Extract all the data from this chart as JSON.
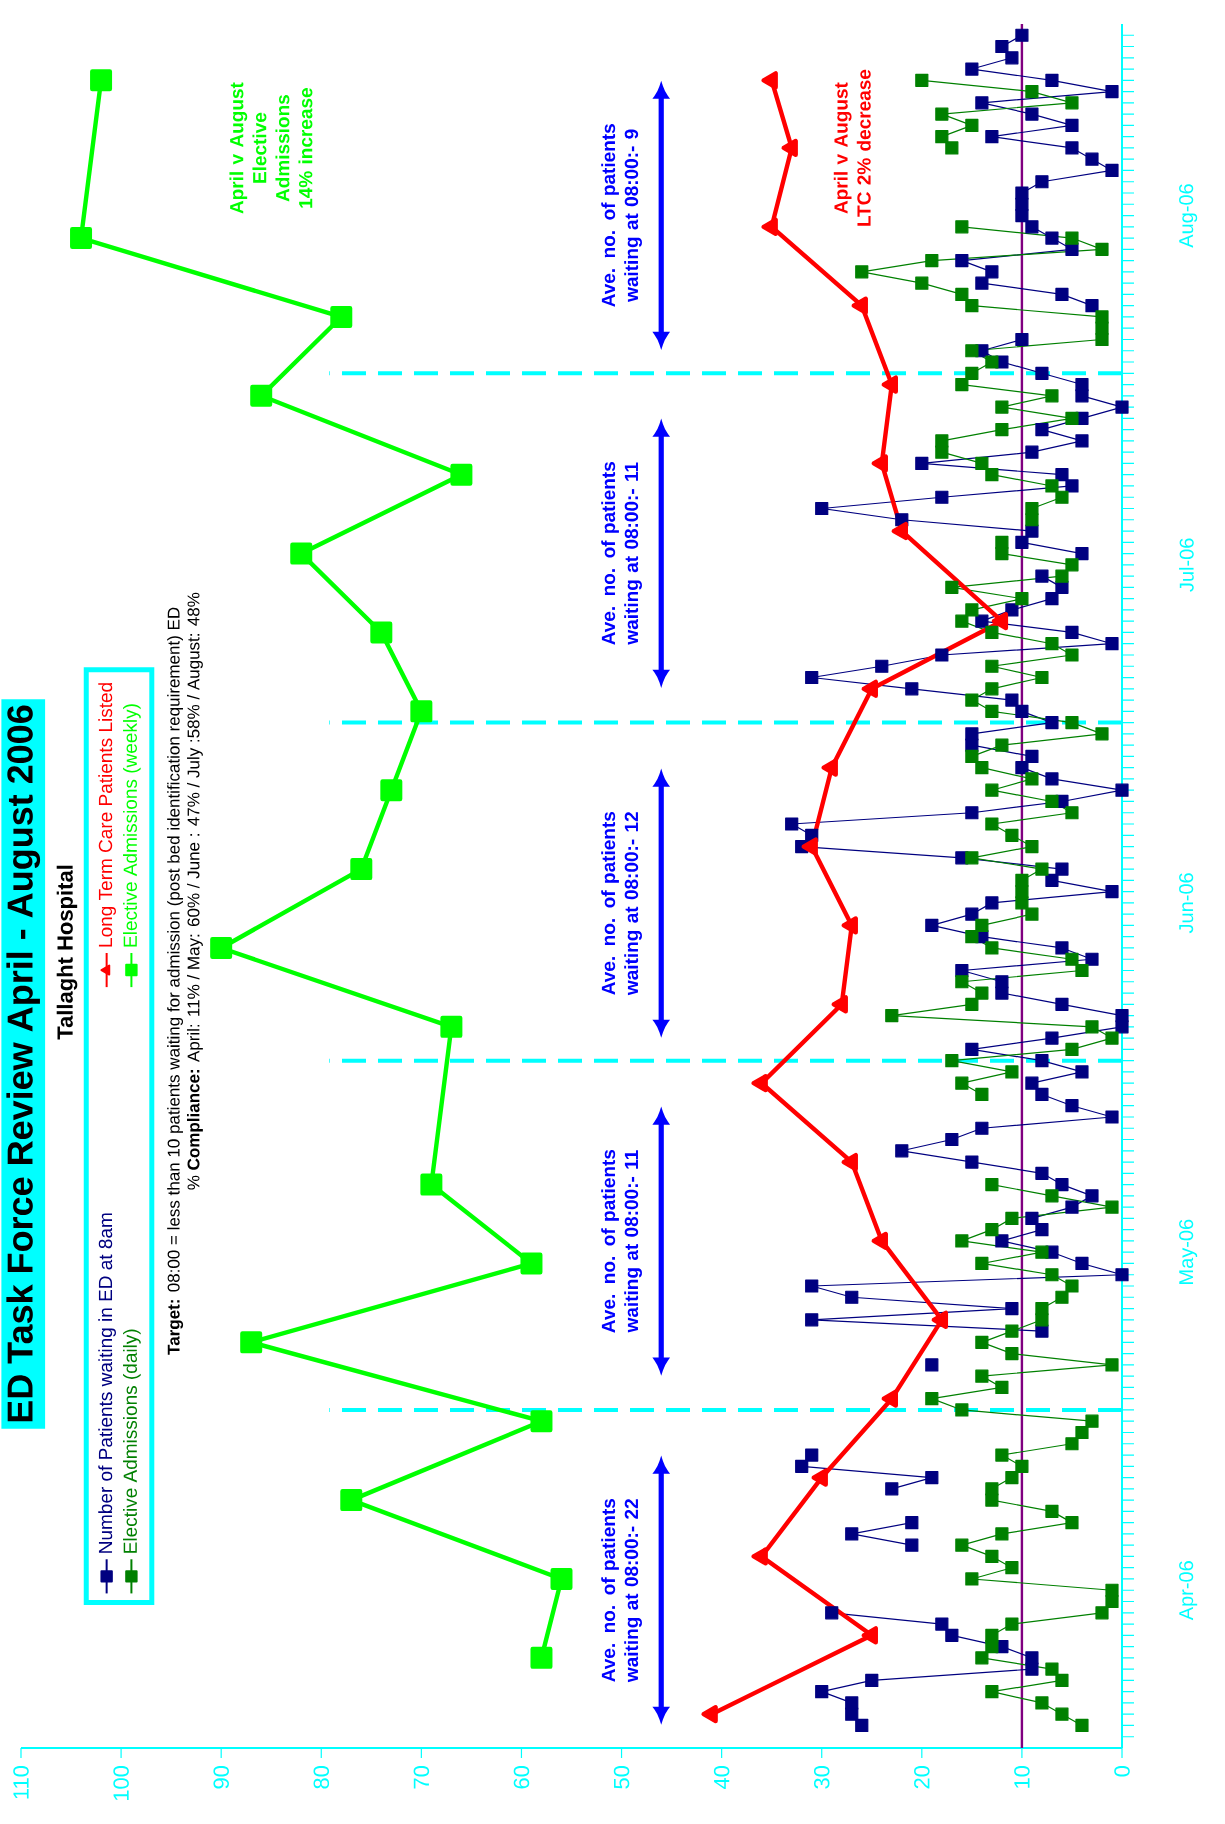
{
  "chart_data": {
    "type": "line",
    "orientation": "horizontal",
    "title": "ED Task Force Review April - August 2006",
    "subtitle": "Tallaght Hospital",
    "x": [
      "2006-04-03",
      "2006-04-04",
      "2006-04-05",
      "2006-04-06",
      "2006-04-07",
      "2006-04-08",
      "2006-04-09",
      "2006-04-10",
      "2006-04-11",
      "2006-04-12",
      "2006-04-13",
      "2006-04-14",
      "2006-04-15",
      "2006-04-16",
      "2006-04-17",
      "2006-04-18",
      "2006-04-19",
      "2006-04-20",
      "2006-04-21",
      "2006-04-22",
      "2006-04-23",
      "2006-04-24",
      "2006-04-25",
      "2006-04-26",
      "2006-04-27",
      "2006-04-28",
      "2006-04-29",
      "2006-04-30",
      "2006-05-01",
      "2006-05-02",
      "2006-05-03",
      "2006-05-04",
      "2006-05-05",
      "2006-05-06",
      "2006-05-07",
      "2006-05-08",
      "2006-05-09",
      "2006-05-10",
      "2006-05-11",
      "2006-05-12",
      "2006-05-13",
      "2006-05-14",
      "2006-05-15",
      "2006-05-16",
      "2006-05-17",
      "2006-05-18",
      "2006-05-19",
      "2006-05-20",
      "2006-05-21",
      "2006-05-22",
      "2006-05-23",
      "2006-05-24",
      "2006-05-25",
      "2006-05-26",
      "2006-05-27",
      "2006-05-28",
      "2006-05-29",
      "2006-05-30",
      "2006-05-31",
      "2006-06-01",
      "2006-06-02",
      "2006-06-03",
      "2006-06-04",
      "2006-06-05",
      "2006-06-06",
      "2006-06-07",
      "2006-06-08",
      "2006-06-09",
      "2006-06-10",
      "2006-06-11",
      "2006-06-12",
      "2006-06-13",
      "2006-06-14",
      "2006-06-15",
      "2006-06-16",
      "2006-06-17",
      "2006-06-18",
      "2006-06-19",
      "2006-06-20",
      "2006-06-21",
      "2006-06-22",
      "2006-06-23",
      "2006-06-24",
      "2006-06-25",
      "2006-06-26",
      "2006-06-27",
      "2006-06-28",
      "2006-06-29",
      "2006-06-30",
      "2006-07-01",
      "2006-07-02",
      "2006-07-03",
      "2006-07-04",
      "2006-07-05",
      "2006-07-06",
      "2006-07-07",
      "2006-07-08",
      "2006-07-09",
      "2006-07-10",
      "2006-07-11",
      "2006-07-12",
      "2006-07-13",
      "2006-07-14",
      "2006-07-15",
      "2006-07-16",
      "2006-07-17",
      "2006-07-18",
      "2006-07-19",
      "2006-07-20",
      "2006-07-21",
      "2006-07-22",
      "2006-07-23",
      "2006-07-24",
      "2006-07-25",
      "2006-07-26",
      "2006-07-27",
      "2006-07-28",
      "2006-07-29",
      "2006-07-30",
      "2006-07-31",
      "2006-08-01",
      "2006-08-02",
      "2006-08-03",
      "2006-08-04",
      "2006-08-05",
      "2006-08-06",
      "2006-08-07",
      "2006-08-08",
      "2006-08-09",
      "2006-08-10",
      "2006-08-11",
      "2006-08-12",
      "2006-08-13",
      "2006-08-14",
      "2006-08-15",
      "2006-08-16",
      "2006-08-17",
      "2006-08-18",
      "2006-08-19",
      "2006-08-20",
      "2006-08-21",
      "2006-08-22",
      "2006-08-23",
      "2006-08-24",
      "2006-08-25",
      "2006-08-26",
      "2006-08-27",
      "2006-08-28",
      "2006-08-29",
      "2006-08-30",
      "2006-08-31"
    ],
    "series": [
      {
        "name": "Number of Patients waiting in ED at 8am",
        "color": "#000080",
        "marker": "square",
        "values": [
          26,
          27,
          27,
          30,
          25,
          9,
          9,
          12,
          17,
          18,
          29,
          null,
          null,
          null,
          null,
          null,
          21,
          27,
          21,
          null,
          null,
          23,
          19,
          32,
          31,
          null,
          null,
          null,
          null,
          null,
          null,
          null,
          19,
          null,
          null,
          8,
          31,
          11,
          27,
          31,
          0,
          4,
          7,
          12,
          8,
          9,
          5,
          3,
          6,
          8,
          15,
          22,
          17,
          14,
          1,
          5,
          8,
          9,
          4,
          8,
          15,
          7,
          0,
          0,
          6,
          12,
          12,
          16,
          3,
          6,
          14,
          19,
          15,
          13,
          1,
          7,
          6,
          16,
          32,
          31,
          33,
          15,
          6,
          0,
          7,
          10,
          9,
          15,
          15,
          7,
          10,
          11,
          21,
          31,
          24,
          18,
          1,
          5,
          14,
          11,
          7,
          6,
          8,
          null,
          4,
          10,
          9,
          22,
          30,
          18,
          5,
          6,
          20,
          9,
          4,
          8,
          4,
          0,
          4,
          4,
          8,
          12,
          14,
          10,
          null,
          null,
          3,
          6,
          14,
          13,
          16,
          5,
          7,
          9,
          10,
          10,
          10,
          8,
          1,
          3,
          5,
          13,
          5,
          9,
          14,
          1,
          7,
          15,
          11,
          12,
          10
        ]
      },
      {
        "name": "Elective Admissions (daily)",
        "color": "#008000",
        "marker": "square",
        "values": [
          4,
          6,
          8,
          13,
          6,
          7,
          14,
          13,
          13,
          11,
          2,
          1,
          1,
          15,
          11,
          13,
          16,
          12,
          5,
          7,
          13,
          13,
          11,
          10,
          12,
          5,
          4,
          3,
          16,
          19,
          12,
          14,
          1,
          11,
          14,
          11,
          8,
          8,
          6,
          5,
          7,
          14,
          8,
          16,
          13,
          11,
          1,
          7,
          13,
          null,
          null,
          null,
          null,
          null,
          null,
          null,
          14,
          16,
          11,
          17,
          5,
          1,
          3,
          23,
          15,
          14,
          16,
          4,
          5,
          13,
          15,
          14,
          9,
          10,
          10,
          10,
          8,
          15,
          9,
          11,
          13,
          5,
          7,
          13,
          9,
          14,
          15,
          12,
          2,
          5,
          13,
          15,
          13,
          8,
          13,
          5,
          7,
          13,
          16,
          15,
          10,
          17,
          6,
          5,
          12,
          12,
          null,
          9,
          9,
          6,
          7,
          13,
          14,
          18,
          18,
          12,
          5,
          12,
          7,
          16,
          15,
          13,
          15,
          2,
          2,
          2,
          15,
          16,
          20,
          26,
          19,
          2,
          5,
          16,
          null,
          null,
          null,
          null,
          null,
          null,
          17,
          18,
          15,
          18,
          5,
          9,
          20,
          null,
          null,
          null,
          null
        ]
      },
      {
        "name": "Long Term Care Patients Listed",
        "color": "#ff0000",
        "marker": "triangle",
        "x": [
          "2006-04-04",
          "2006-04-11",
          "2006-04-18",
          "2006-04-25",
          "2006-05-02",
          "2006-05-09",
          "2006-05-16",
          "2006-05-23",
          "2006-05-30",
          "2006-06-06",
          "2006-06-13",
          "2006-06-20",
          "2006-06-27",
          "2006-07-04",
          "2006-07-10",
          "2006-07-18",
          "2006-07-24",
          "2006-07-31",
          "2006-08-07",
          "2006-08-14",
          "2006-08-21",
          "2006-08-27"
        ],
        "values": [
          41,
          25,
          36,
          30,
          23,
          18,
          24,
          27,
          36,
          28,
          27,
          31,
          29,
          25,
          12,
          22,
          24,
          23,
          26,
          35,
          33,
          35
        ]
      },
      {
        "name": "Elective Admissions (weekly)",
        "color": "#00ff00",
        "marker": "square",
        "x": [
          "2006-04-09",
          "2006-04-16",
          "2006-04-23",
          "2006-04-30",
          "2006-05-07",
          "2006-05-14",
          "2006-05-21",
          "2006-06-04",
          "2006-06-11",
          "2006-06-18",
          "2006-06-25",
          "2006-07-02",
          "2006-07-09",
          "2006-07-16",
          "2006-07-23",
          "2006-07-30",
          "2006-08-06",
          "2006-08-13",
          "2006-08-27"
        ],
        "values": [
          58,
          56,
          77,
          58,
          87,
          59,
          69,
          67,
          90,
          76,
          73,
          70,
          74,
          82,
          66,
          86,
          78,
          104,
          102
        ]
      }
    ],
    "ylim": [
      "2006-04-01",
      "2006-09-01"
    ],
    "yticks": [
      {
        "value": "2006-04-15",
        "label": "Apr-06"
      },
      {
        "value": "2006-05-15",
        "label": "May-06"
      },
      {
        "value": "2006-06-15",
        "label": "Jun-06"
      },
      {
        "value": "2006-07-15",
        "label": "Jul-06"
      },
      {
        "value": "2006-08-15",
        "label": "Aug-06"
      }
    ],
    "xlim": [
      110,
      0
    ],
    "xticks": [
      0,
      10,
      20,
      30,
      40,
      50,
      60,
      70,
      80,
      90,
      100,
      110
    ],
    "ref_lines": [
      {
        "axis": "x",
        "value": 10,
        "color": "#800080"
      },
      {
        "axis": "y",
        "value": "2006-05-01",
        "color": "#00ffff",
        "line_style": "dashed"
      },
      {
        "axis": "y",
        "value": "2006-06-01",
        "color": "#00ffff",
        "line_style": "dashed"
      },
      {
        "axis": "y",
        "value": "2006-07-01",
        "color": "#00ffff",
        "line_style": "dashed"
      },
      {
        "axis": "y",
        "value": "2006-08-01",
        "color": "#00ffff",
        "line_style": "dashed"
      }
    ],
    "annotations": [
      "Ave. no. of patients waiting at 08:00:- 22",
      "Ave. no. of patients waiting at 08:00:- 11",
      "Ave. no. of patients waiting at 08:00:- 12",
      "Ave. no. of patients waiting at 08:00:- 11",
      "Ave. no. of patients waiting at 08:00:- 9",
      "April v August LTC 2% decrease",
      "April v August Elective Admissions 14% increase",
      "**Target:** 08:00 = less than 10 patients waiting for admission (post bed identification requirement) ED",
      "% **Compliance:** April: 11% / May: 60% / June : 47% / July :58% / August: 48%"
    ],
    "grid": false,
    "legend": "left"
  }
}
